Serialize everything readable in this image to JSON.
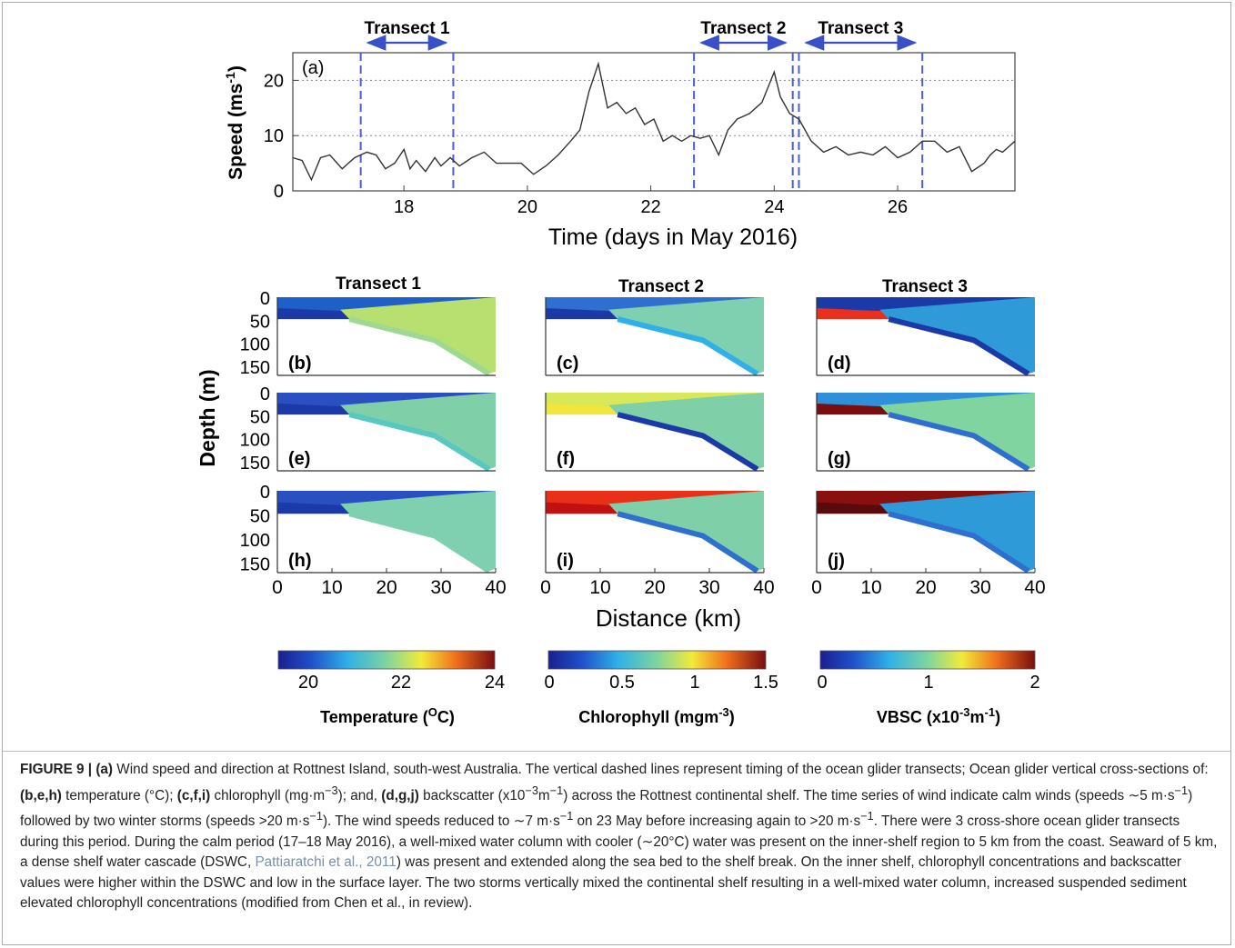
{
  "panel_a": {
    "label": "(a)",
    "ylabel": "Speed (ms",
    "ylabel_sup": "-1",
    "ylabel_end": ")",
    "xlabel": "Time (days in May 2016)",
    "y_ticks": [
      "0",
      "10",
      "20"
    ],
    "x_ticks": [
      "18",
      "20",
      "22",
      "24",
      "26"
    ],
    "transects": [
      {
        "label": "Transect 1"
      },
      {
        "label": "Transect 2"
      },
      {
        "label": "Transect 3"
      }
    ]
  },
  "chart_data": {
    "type": "line",
    "title": "",
    "xlabel": "Time (days in May 2016)",
    "ylabel": "Speed (ms-1)",
    "xlim": [
      16.2,
      27.9
    ],
    "ylim": [
      0,
      25
    ],
    "grid": "horizontal dotted at 10 and 20",
    "x": [
      16.2,
      16.35,
      16.5,
      16.65,
      16.8,
      17.0,
      17.2,
      17.4,
      17.55,
      17.7,
      17.85,
      18.0,
      18.1,
      18.2,
      18.35,
      18.5,
      18.6,
      18.75,
      18.9,
      19.1,
      19.3,
      19.5,
      19.7,
      19.9,
      20.1,
      20.3,
      20.5,
      20.7,
      20.85,
      21.0,
      21.15,
      21.3,
      21.45,
      21.6,
      21.75,
      21.9,
      22.05,
      22.2,
      22.35,
      22.5,
      22.65,
      22.8,
      22.95,
      23.1,
      23.25,
      23.4,
      23.6,
      23.8,
      24.0,
      24.1,
      24.25,
      24.4,
      24.6,
      24.8,
      25.0,
      25.2,
      25.4,
      25.6,
      25.8,
      26.0,
      26.2,
      26.4,
      26.6,
      26.8,
      27.0,
      27.2,
      27.4,
      27.5,
      27.6,
      27.7,
      27.8,
      27.9
    ],
    "y": [
      6,
      5.5,
      2,
      6,
      6.5,
      4,
      6,
      7,
      6.5,
      4,
      5,
      7.5,
      4,
      5.5,
      3.5,
      6,
      4.5,
      6,
      4.5,
      6,
      7,
      5,
      5,
      5,
      3,
      4.5,
      6.5,
      9,
      11,
      18,
      23,
      15,
      16,
      14,
      15,
      12,
      13,
      9,
      10,
      9,
      10,
      9.5,
      10,
      6.5,
      11,
      13,
      14,
      16,
      21.5,
      17,
      14,
      13,
      9,
      7,
      8,
      6.5,
      7,
      6.5,
      8,
      6,
      7,
      9,
      9,
      7,
      8,
      3.5,
      5,
      6.5,
      7.5,
      7,
      8,
      9
    ],
    "dashed_lines_x": [
      17.3,
      18.8,
      22.7,
      24.3,
      24.4,
      26.4
    ]
  },
  "sections": {
    "column_titles": [
      "Transect 1",
      "Transect 2",
      "Transect 3"
    ],
    "panel_labels": [
      "(b)",
      "(c)",
      "(d)",
      "(e)",
      "(f)",
      "(g)",
      "(h)",
      "(i)",
      "(j)"
    ],
    "ylabel": "Depth (m)",
    "depth_ticks": [
      "0",
      "50",
      "100",
      "150"
    ],
    "distance_ticks": [
      "0",
      "10",
      "20",
      "30",
      "40"
    ],
    "xlabel": "Distance (km)"
  },
  "colorbars": [
    {
      "ticks": [
        "20",
        "22",
        "24"
      ],
      "label": "Temperature (",
      "label_sup": "O",
      "label_end": "C)"
    },
    {
      "ticks": [
        "0",
        "0.5",
        "1",
        "1.5"
      ],
      "label": "Chlorophyll (mgm",
      "label_sup": "-3",
      "label_end": ")"
    },
    {
      "ticks": [
        "0",
        "1",
        "2"
      ],
      "label": "VBSC (x10",
      "label_sup": "-3",
      "label_mid": "m",
      "label_sup2": "-1",
      "label_end": ")"
    }
  ],
  "colors": {
    "cold": "#1a2fa0",
    "cool": "#2f9ad8",
    "mid": "#77d0a0",
    "warm": "#f2e63a",
    "hot": "#e8401c",
    "max": "#7a0d10",
    "dashed": "#4b5ed0",
    "arrow": "#3a4fc8"
  },
  "caption": {
    "figure_label": "FIGURE 9 | ",
    "part1_bold": "(a)",
    "part1": " Wind speed and direction at Rottnest Island, south-west Australia. The vertical dashed lines represent timing of the ocean glider transects; Ocean glider vertical cross-sections of: ",
    "part2_bold": "(b,e,h)",
    "part2": " temperature (°C); ",
    "part3_bold": "(c,f,i)",
    "part3": " chlorophyll (mg·m",
    "part3_sup": "−3",
    "part3_end": "); and, ",
    "part4_bold": "(d,g,j)",
    "part4": " backscatter (x10",
    "part4_sup": "−3",
    "part4_mid": "m",
    "part4_sup2": "−1",
    "part4_end": ") across the Rottnest continental shelf. The time series of wind indicate calm winds (speeds ∼5 m·s",
    "part5_sup": "−1",
    "part5": ") followed by two winter storms (speeds >20 m·s",
    "part6_sup": "−1",
    "part6": "). The wind speeds reduced to ∼7 m·s",
    "part7_sup": "−1",
    "part7": " on 23 May before increasing again to >20 m·s",
    "part8_sup": "−1",
    "part8": ". There were 3 cross-shore ocean glider transects during this period. During the calm period (17–18 May 2016), a well-mixed water column with cooler (∼20°C) water was present on the inner-shelf region to 5 km from the coast. Seaward of 5 km, a dense shelf water cascade (DSWC, ",
    "ref": "Pattiaratchi et al., 2011",
    "part9": ") was present and extended along the sea bed to the shelf break. On the inner shelf, chlorophyll concentrations and backscatter values were higher within the DSWC and low in the surface layer. The two storms vertically mixed the continental shelf resulting in a well-mixed water column, increased suspended sediment elevated chlorophyll concentrations (modified from Chen et al., in review)."
  }
}
